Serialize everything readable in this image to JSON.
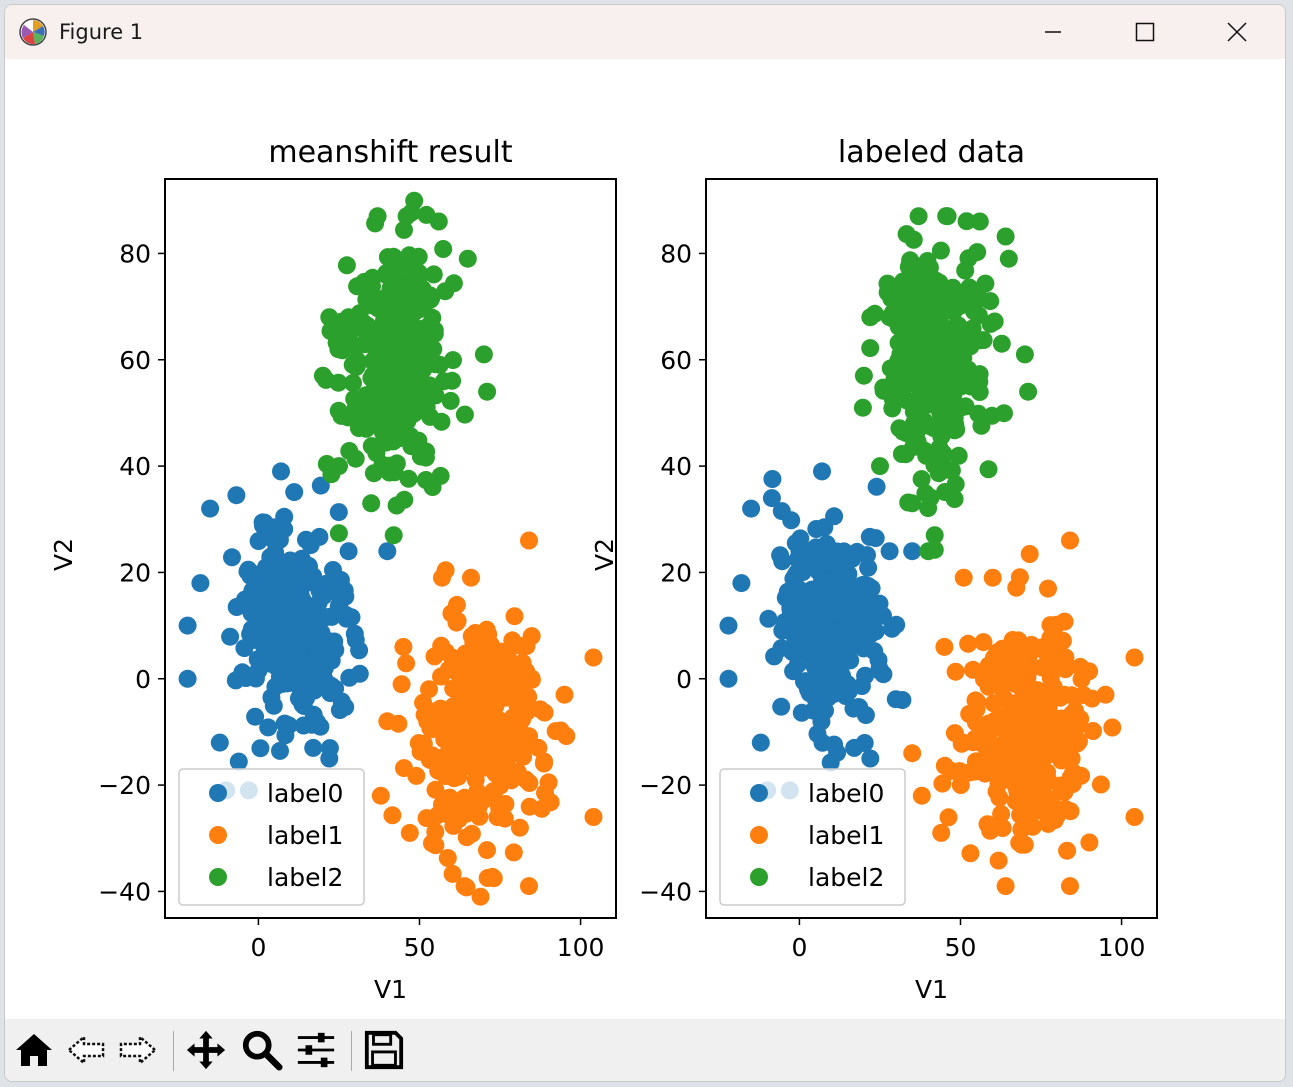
{
  "window": {
    "title": "Figure 1",
    "buttons": [
      "minimize",
      "maximize",
      "close"
    ]
  },
  "toolbar": {
    "tools": [
      "home-icon",
      "back-icon",
      "forward-icon",
      "pan-icon",
      "zoom-icon",
      "configure-subplots-icon",
      "save-icon"
    ]
  },
  "colors": {
    "label0": "#1f77b4",
    "label1": "#ff7f0e",
    "label2": "#2ca02c"
  },
  "chart_data": [
    {
      "type": "scatter",
      "title": "meanshift result",
      "xlabel": "V1",
      "ylabel": "V2",
      "xlim": [
        -29,
        111
      ],
      "ylim": [
        -45,
        94
      ],
      "xticks": [
        "0",
        "50",
        "100"
      ],
      "yticks": [
        "−40",
        "−20",
        "0",
        "20",
        "40",
        "60",
        "80"
      ],
      "legend_position": "lower-left",
      "series": [
        {
          "name": "label0",
          "cluster": {
            "center": [
              10,
              10
            ],
            "spread": [
              8,
              9
            ],
            "n": 320
          },
          "outliers": [
            [
              -22,
              0
            ],
            [
              -22,
              10
            ],
            [
              -15,
              32
            ],
            [
              -12,
              -12
            ],
            [
              7,
              39
            ],
            [
              28,
              24
            ],
            [
              40,
              24
            ],
            [
              22,
              -15
            ],
            [
              -10,
              -21
            ],
            [
              -3,
              -21
            ],
            [
              17,
              -13
            ],
            [
              -18,
              18
            ]
          ]
        },
        {
          "name": "label1",
          "cluster": {
            "center": [
              70,
              -10
            ],
            "spread": [
              9,
              10
            ],
            "n": 320
          },
          "outliers": [
            [
              84,
              26
            ],
            [
              57,
              19
            ],
            [
              66,
              19
            ],
            [
              104,
              4
            ],
            [
              104,
              -26
            ],
            [
              45,
              6
            ],
            [
              38,
              -22
            ],
            [
              40,
              -8
            ],
            [
              47,
              -29
            ],
            [
              84,
              -39
            ],
            [
              64,
              -39
            ],
            [
              95,
              -3
            ]
          ]
        },
        {
          "name": "label2",
          "cluster": {
            "center": [
              42,
              60
            ],
            "spread": [
              8,
              11
            ],
            "n": 320
          },
          "outliers": [
            [
              37,
              87
            ],
            [
              46,
              87
            ],
            [
              56,
              86
            ],
            [
              65,
              79
            ],
            [
              28,
              68
            ],
            [
              22,
              68
            ],
            [
              70,
              61
            ],
            [
              71,
              54
            ],
            [
              20,
              57
            ],
            [
              25,
              40
            ],
            [
              35,
              33
            ],
            [
              42,
              27
            ]
          ]
        }
      ]
    },
    {
      "type": "scatter",
      "title": "labeled data",
      "xlabel": "V1",
      "ylabel": "V2",
      "xlim": [
        -29,
        111
      ],
      "ylim": [
        -45,
        94
      ],
      "xticks": [
        "0",
        "50",
        "100"
      ],
      "yticks": [
        "−40",
        "−20",
        "0",
        "20",
        "40",
        "60",
        "80"
      ],
      "legend_position": "lower-left",
      "series": [
        {
          "name": "label0",
          "cluster": {
            "center": [
              10,
              10
            ],
            "spread": [
              8,
              9
            ],
            "n": 320
          },
          "outliers": [
            [
              -22,
              0
            ],
            [
              -22,
              10
            ],
            [
              -15,
              32
            ],
            [
              -12,
              -12
            ],
            [
              7,
              39
            ],
            [
              28,
              24
            ],
            [
              35,
              24
            ],
            [
              22,
              -15
            ],
            [
              -10,
              -21
            ],
            [
              -3,
              -21
            ],
            [
              17,
              -13
            ],
            [
              -18,
              18
            ]
          ]
        },
        {
          "name": "label1",
          "cluster": {
            "center": [
              70,
              -10
            ],
            "spread": [
              9,
              10
            ],
            "n": 320
          },
          "outliers": [
            [
              84,
              26
            ],
            [
              51,
              19
            ],
            [
              60,
              19
            ],
            [
              104,
              4
            ],
            [
              104,
              -26
            ],
            [
              45,
              6
            ],
            [
              38,
              -22
            ],
            [
              35,
              -14
            ],
            [
              44,
              -29
            ],
            [
              84,
              -39
            ],
            [
              64,
              -39
            ],
            [
              95,
              -3
            ]
          ]
        },
        {
          "name": "label2",
          "cluster": {
            "center": [
              42,
              60
            ],
            "spread": [
              8,
              11
            ],
            "n": 320
          },
          "outliers": [
            [
              37,
              87
            ],
            [
              46,
              87
            ],
            [
              56,
              86
            ],
            [
              65,
              79
            ],
            [
              28,
              68
            ],
            [
              22,
              68
            ],
            [
              70,
              61
            ],
            [
              71,
              54
            ],
            [
              20,
              57
            ],
            [
              25,
              40
            ],
            [
              35,
              33
            ],
            [
              42,
              27
            ],
            [
              40,
              24
            ]
          ]
        }
      ]
    }
  ]
}
